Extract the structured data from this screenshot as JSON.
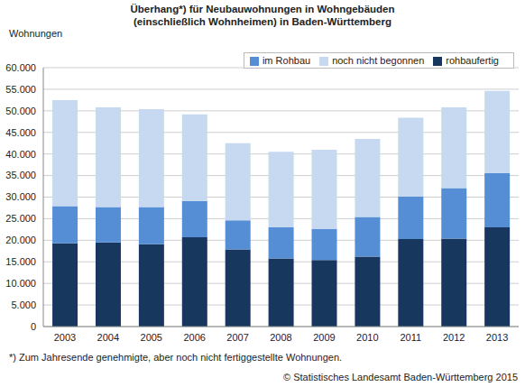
{
  "chart_data": {
    "type": "bar",
    "stacked": true,
    "title": "Überhang*) für Neubauwohnungen in Wohngebäuden\n(einschließlich Wohnheimen) in Baden-Württemberg",
    "y_label": "Wohnungen",
    "footnote": "*) Zum Jahresende genehmigte, aber noch nicht fertiggestellte Wohnungen.",
    "source": "© Statistisches Landesamt Baden-Württemberg 2015",
    "categories": [
      "2003",
      "2004",
      "2005",
      "2006",
      "2007",
      "2008",
      "2009",
      "2010",
      "2011",
      "2012",
      "2013"
    ],
    "series": [
      {
        "name": "rohbaufertig",
        "color": "#17375e",
        "values": [
          19300,
          19500,
          19100,
          20700,
          17900,
          15800,
          15400,
          16200,
          20300,
          20400,
          23000
        ]
      },
      {
        "name": "im Rohbau",
        "color": "#558ed5",
        "values": [
          8600,
          8200,
          8600,
          8400,
          6700,
          7200,
          7200,
          9200,
          9800,
          11700,
          12600
        ]
      },
      {
        "name": "noch nicht begonnen",
        "color": "#c6d9f1",
        "values": [
          24600,
          23100,
          22700,
          20100,
          17900,
          17500,
          18400,
          18100,
          18300,
          18700,
          19000
        ]
      }
    ],
    "ylim": [
      0,
      60000
    ],
    "yticks": [
      0,
      {
        "value": 5000,
        "label": "5.000"
      },
      {
        "value": 10000,
        "label": "10.000"
      },
      {
        "value": 15000,
        "label": "15.000"
      },
      {
        "value": 20000,
        "label": "20.000"
      },
      {
        "value": 25000,
        "label": "25.000"
      },
      {
        "value": 30000,
        "label": "30.000"
      },
      {
        "value": 35000,
        "label": "35.000"
      },
      {
        "value": 40000,
        "label": "40.000"
      },
      {
        "value": 45000,
        "label": "45.000"
      },
      {
        "value": 50000,
        "label": "50.000"
      },
      {
        "value": 55000,
        "label": "55.000"
      },
      {
        "value": 60000,
        "label": "60.000"
      }
    ],
    "grid": true,
    "legend": "top-right"
  }
}
